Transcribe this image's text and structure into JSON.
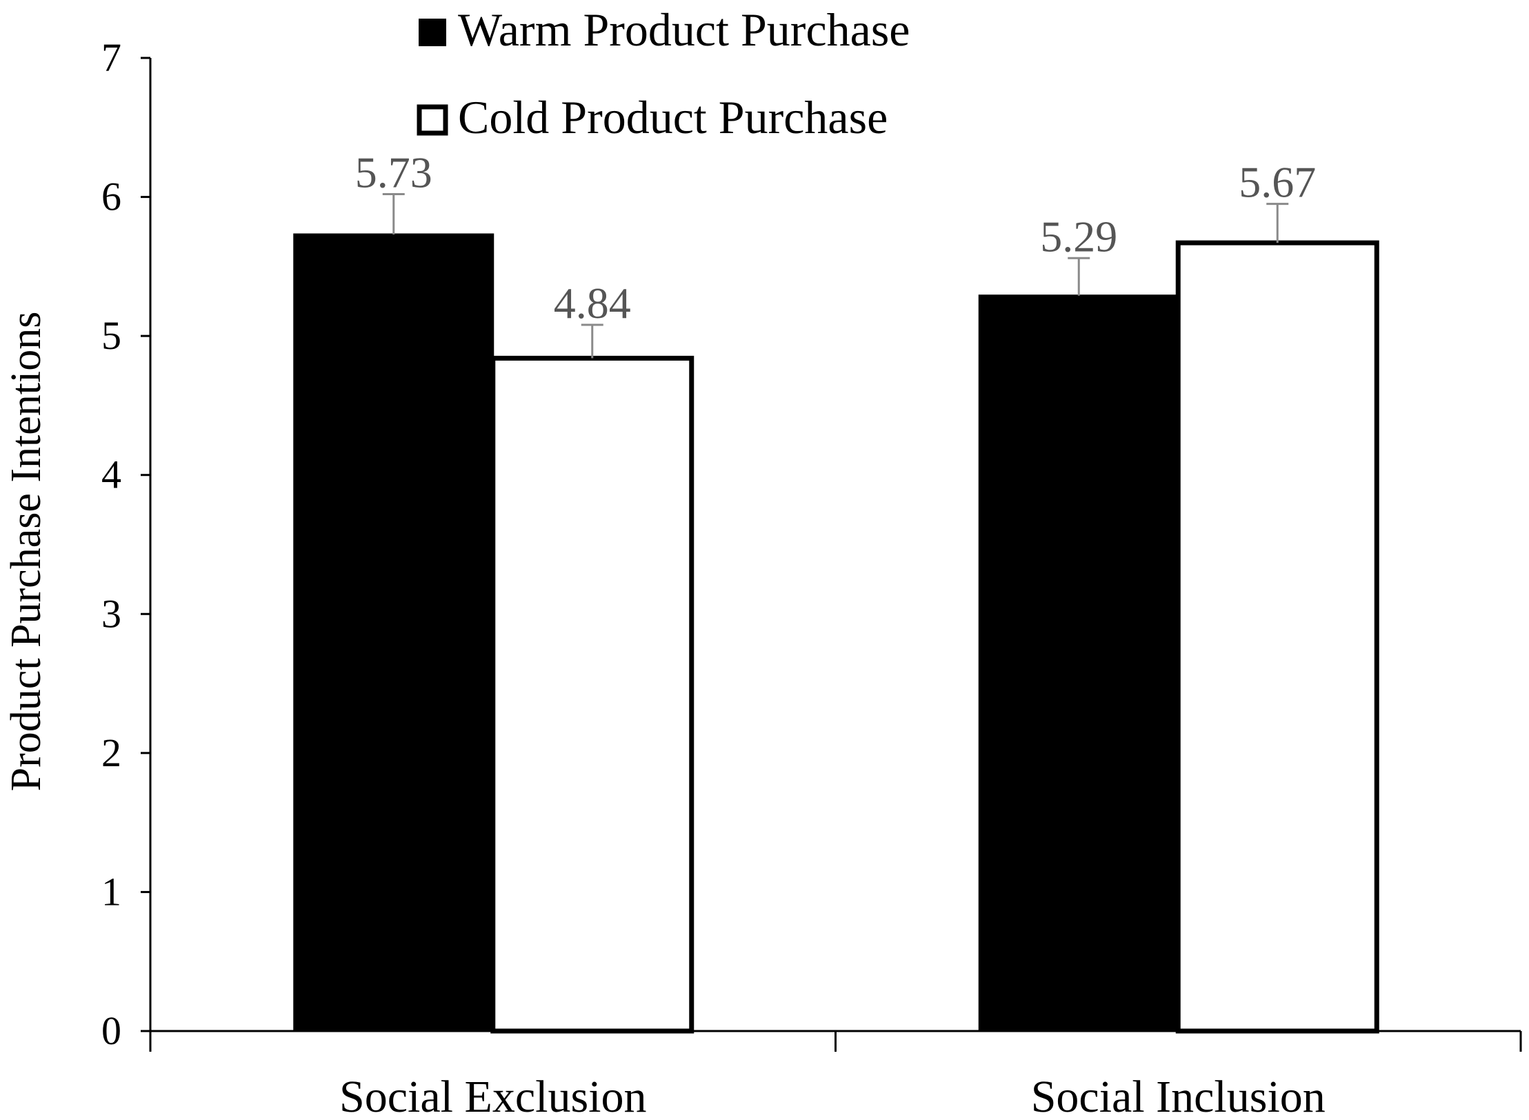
{
  "chart_data": {
    "type": "bar",
    "title": "",
    "xlabel": "",
    "ylabel": "Product Purchase Intentions",
    "categories": [
      "Social Exclusion",
      "Social Inclusion"
    ],
    "ylim": [
      0,
      7
    ],
    "yticks": [
      0,
      1,
      2,
      3,
      4,
      5,
      6,
      7
    ],
    "grid": false,
    "legend_position": "top",
    "error_bars": true,
    "series": [
      {
        "name": "Warm Product Purchase",
        "fill": "#000000",
        "values": [
          5.73,
          5.29
        ],
        "error": [
          0.29,
          0.27
        ],
        "labels": [
          "5.73",
          "5.29"
        ]
      },
      {
        "name": "Cold Product Purchase",
        "fill": "#ffffff",
        "values": [
          4.84,
          5.67
        ],
        "error": [
          0.24,
          0.28
        ],
        "labels": [
          "4.84",
          "5.67"
        ]
      }
    ]
  }
}
